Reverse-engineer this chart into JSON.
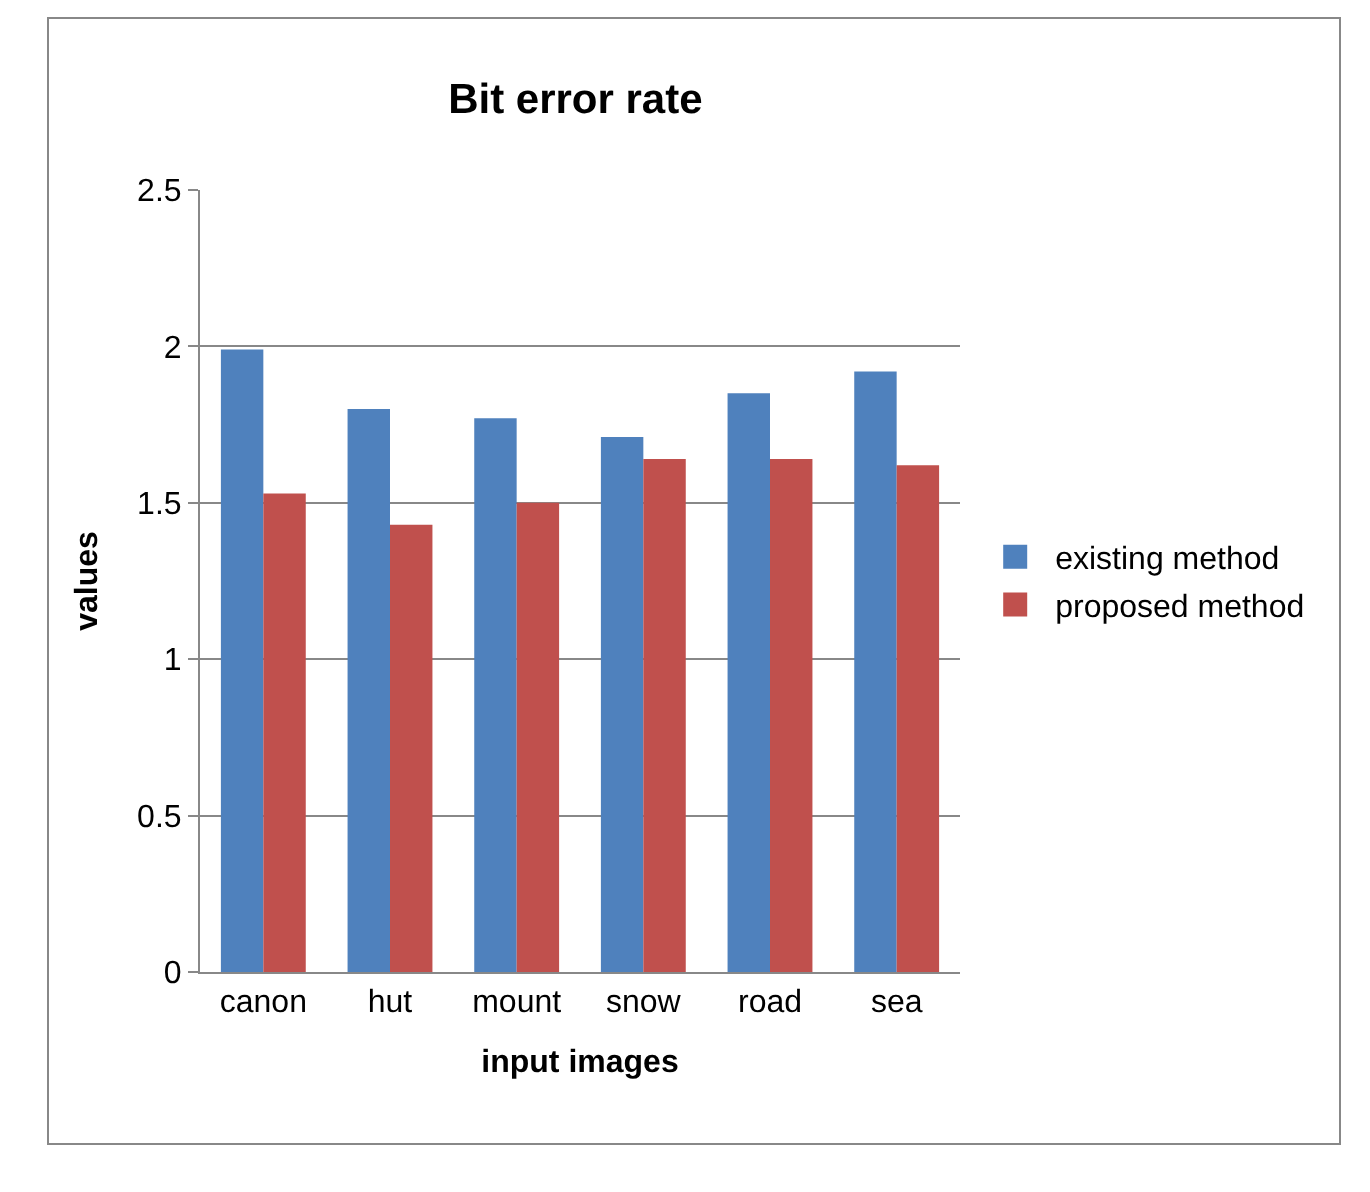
{
  "chart_data": {
    "type": "bar",
    "title": "Bit error rate",
    "xlabel": "input images",
    "ylabel": "values",
    "categories": [
      "canon",
      "hut",
      "mount",
      "snow",
      "road",
      "sea"
    ],
    "series": [
      {
        "name": "existing method",
        "color": "#4f81bd",
        "values": [
          1.99,
          1.8,
          1.77,
          1.71,
          1.85,
          1.92
        ]
      },
      {
        "name": "proposed method",
        "color": "#c0504d",
        "values": [
          1.53,
          1.43,
          1.5,
          1.64,
          1.64,
          1.62
        ]
      }
    ],
    "ylim": [
      0,
      2.5
    ],
    "yticks": [
      0,
      0.5,
      1,
      1.5,
      2,
      2.5
    ],
    "grid": "y",
    "legend": "right"
  }
}
